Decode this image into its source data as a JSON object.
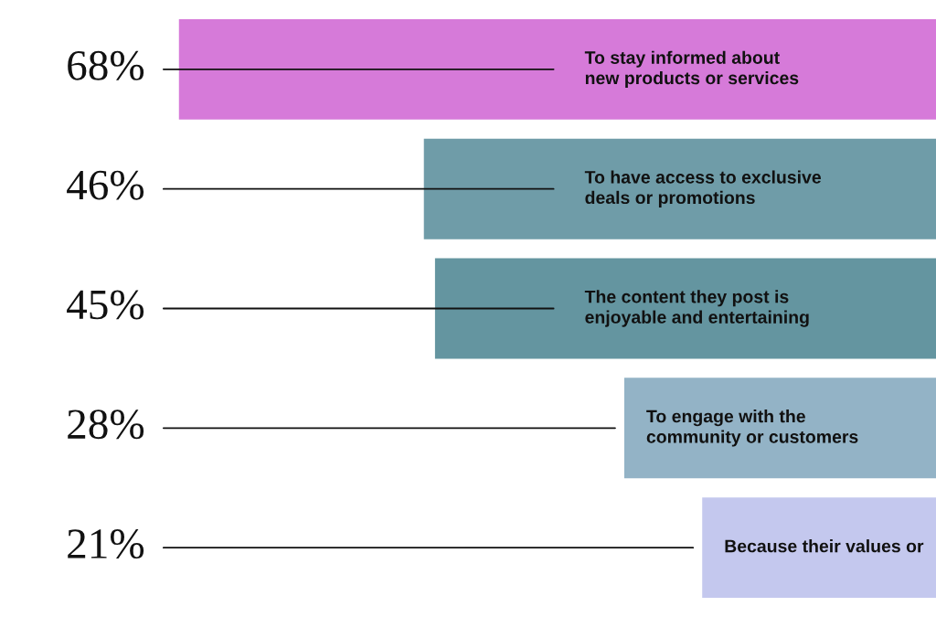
{
  "chart_data": {
    "type": "bar",
    "orientation": "horizontal",
    "categories": [
      "To stay informed about\nnew products or services",
      "To have access to exclusive\ndeals or promotions",
      "The content they post is\nenjoyable and entertaining",
      "To engage with the\ncommunity or customers",
      "Because their values or"
    ],
    "values": [
      68,
      46,
      45,
      28,
      21
    ],
    "value_labels": [
      "68%",
      "46%",
      "45%",
      "28%",
      "21%"
    ],
    "colors": [
      "#d67ad9",
      "#6f9ca8",
      "#6495a0",
      "#93b3c6",
      "#c4c8ee"
    ],
    "tick_labels": false
  }
}
